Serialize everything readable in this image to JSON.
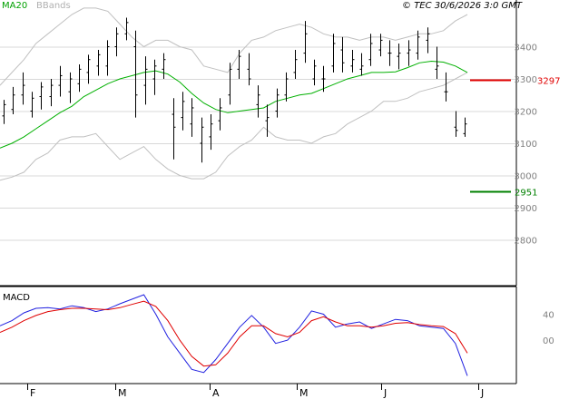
{
  "legend": {
    "ma_label": "MA20",
    "bbands_label": "BBands"
  },
  "copyright": "© TEC 30/6/2026 3:0 GMT",
  "macd_label": "MACD",
  "colors": {
    "bars": "#000000",
    "ma20": "#00b000",
    "bbands": "#c0c0c0",
    "macd": "#2020e0",
    "signal": "#e00000",
    "resistance": "#e00000",
    "support": "#008000",
    "grid": "#d8d8d8"
  },
  "chart_data": [
    {
      "type": "ohlc",
      "title": "",
      "ylim": [
        2700,
        3500
      ],
      "yticks": [
        "3400",
        "3300",
        "3200",
        "3100",
        "3000",
        "2900",
        "2800"
      ],
      "xtick_labels": [
        "F",
        "M",
        "A",
        "M",
        "J",
        "J"
      ],
      "levels": [
        {
          "name": "resistance",
          "value": "3297"
        },
        {
          "name": "support",
          "value": "2951"
        }
      ],
      "series": [
        {
          "name": "MA20",
          "values": [
            3085,
            3100,
            3120,
            3145,
            3170,
            3195,
            3215,
            3245,
            3265,
            3285,
            3300,
            3310,
            3320,
            3325,
            3315,
            3290,
            3255,
            3225,
            3205,
            3195,
            3200,
            3205,
            3210,
            3230,
            3240,
            3250,
            3255,
            3270,
            3285,
            3300,
            3310,
            3320,
            3320,
            3322,
            3335,
            3350,
            3355,
            3352,
            3340,
            3320
          ]
        },
        {
          "name": "BBands upper",
          "values": [
            3280,
            3320,
            3360,
            3410,
            3440,
            3470,
            3500,
            3520,
            3520,
            3510,
            3470,
            3430,
            3400,
            3420,
            3420,
            3400,
            3390,
            3340,
            3330,
            3320,
            3380,
            3420,
            3430,
            3450,
            3460,
            3470,
            3460,
            3440,
            3430,
            3430,
            3420,
            3430,
            3430,
            3420,
            3430,
            3440,
            3440,
            3450,
            3480,
            3500
          ]
        },
        {
          "name": "BBands lower",
          "values": [
            2985,
            2995,
            3010,
            3050,
            3070,
            3110,
            3120,
            3120,
            3130,
            3090,
            3050,
            3070,
            3090,
            3050,
            3020,
            3000,
            2990,
            2990,
            3010,
            3060,
            3090,
            3110,
            3150,
            3120,
            3110,
            3110,
            3100,
            3120,
            3130,
            3160,
            3180,
            3200,
            3230,
            3230,
            3240,
            3260,
            3270,
            3280,
            3300,
            3320
          ]
        }
      ],
      "ohlc": [
        [
          3185,
          3235,
          3160,
          3220
        ],
        [
          3205,
          3275,
          3190,
          3250
        ],
        [
          3250,
          3320,
          3220,
          3280
        ],
        [
          3200,
          3260,
          3180,
          3240
        ],
        [
          3245,
          3290,
          3205,
          3275
        ],
        [
          3245,
          3300,
          3215,
          3280
        ],
        [
          3280,
          3340,
          3245,
          3310
        ],
        [
          3260,
          3320,
          3225,
          3300
        ],
        [
          3285,
          3345,
          3260,
          3330
        ],
        [
          3320,
          3375,
          3285,
          3360
        ],
        [
          3340,
          3390,
          3310,
          3375
        ],
        [
          3340,
          3420,
          3310,
          3400
        ],
        [
          3400,
          3460,
          3370,
          3440
        ],
        [
          3440,
          3490,
          3420,
          3475
        ],
        [
          3400,
          3450,
          3180,
          3250
        ],
        [
          3280,
          3370,
          3220,
          3330
        ],
        [
          3300,
          3360,
          3250,
          3340
        ],
        [
          3330,
          3380,
          3300,
          3360
        ],
        [
          3190,
          3240,
          3050,
          3150
        ],
        [
          3180,
          3260,
          3140,
          3230
        ],
        [
          3160,
          3240,
          3120,
          3210
        ],
        [
          3100,
          3180,
          3040,
          3150
        ],
        [
          3120,
          3190,
          3080,
          3160
        ],
        [
          3170,
          3240,
          3140,
          3210
        ],
        [
          3250,
          3350,
          3220,
          3330
        ],
        [
          3330,
          3390,
          3300,
          3370
        ],
        [
          3330,
          3380,
          3280,
          3300
        ],
        [
          3220,
          3280,
          3180,
          3250
        ],
        [
          3170,
          3220,
          3120,
          3180
        ],
        [
          3200,
          3270,
          3180,
          3250
        ],
        [
          3250,
          3320,
          3230,
          3300
        ],
        [
          3320,
          3390,
          3300,
          3360
        ],
        [
          3380,
          3480,
          3350,
          3440
        ],
        [
          3300,
          3360,
          3280,
          3340
        ],
        [
          3300,
          3340,
          3260,
          3300
        ],
        [
          3340,
          3440,
          3320,
          3410
        ],
        [
          3390,
          3430,
          3320,
          3350
        ],
        [
          3340,
          3390,
          3320,
          3360
        ],
        [
          3330,
          3380,
          3310,
          3340
        ],
        [
          3360,
          3440,
          3340,
          3410
        ],
        [
          3390,
          3440,
          3370,
          3420
        ],
        [
          3380,
          3420,
          3340,
          3380
        ],
        [
          3370,
          3410,
          3330,
          3380
        ],
        [
          3380,
          3420,
          3340,
          3390
        ],
        [
          3380,
          3450,
          3360,
          3430
        ],
        [
          3420,
          3460,
          3380,
          3440
        ],
        [
          3330,
          3400,
          3300,
          3340
        ],
        [
          3260,
          3320,
          3230,
          3260
        ],
        [
          3150,
          3200,
          3120,
          3140
        ],
        [
          3130,
          3180,
          3120,
          3160
        ]
      ]
    },
    {
      "type": "line",
      "title": "",
      "ylim": [
        -60,
        70
      ],
      "yticks": [
        "40",
        "00"
      ],
      "series": [
        {
          "name": "MACD",
          "values": [
            22,
            30,
            42,
            49,
            50,
            48,
            53,
            50,
            44,
            48,
            56,
            63,
            70,
            40,
            5,
            -20,
            -45,
            -50,
            -30,
            -5,
            20,
            38,
            20,
            -5,
            0,
            20,
            45,
            40,
            20,
            25,
            28,
            18,
            25,
            32,
            30,
            22,
            20,
            18,
            -5,
            -55
          ]
        },
        {
          "name": "Signal",
          "values": [
            12,
            20,
            30,
            38,
            44,
            47,
            49,
            49,
            48,
            47,
            50,
            55,
            60,
            52,
            30,
            0,
            -25,
            -40,
            -38,
            -20,
            5,
            22,
            22,
            10,
            5,
            12,
            30,
            36,
            28,
            22,
            22,
            20,
            22,
            26,
            27,
            24,
            22,
            21,
            10,
            -20
          ]
        }
      ]
    }
  ]
}
